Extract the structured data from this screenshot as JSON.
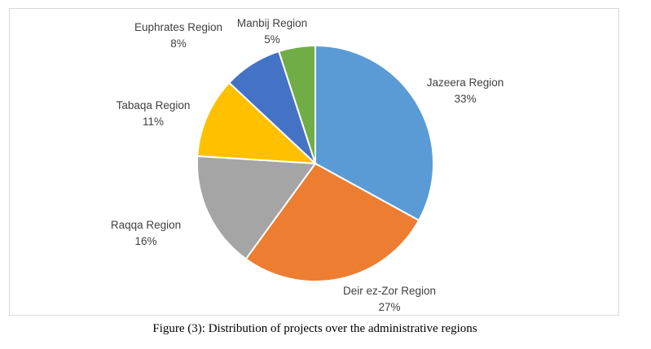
{
  "chart_data": {
    "type": "pie",
    "slices": [
      {
        "name": "Jazeera Region",
        "value": 33,
        "value_label": "33%",
        "color": "#5b9bd5"
      },
      {
        "name": "Deir ez-Zor Region",
        "value": 27,
        "value_label": "27%",
        "color": "#ed7d31"
      },
      {
        "name": "Raqqa Region",
        "value": 16,
        "value_label": "16%",
        "color": "#a5a5a5"
      },
      {
        "name": "Tabaqa Region",
        "value": 11,
        "value_label": "11%",
        "color": "#ffc000"
      },
      {
        "name": "Euphrates Region",
        "value": 8,
        "value_label": "8%",
        "color": "#4472c4"
      },
      {
        "name": "Manbij Region",
        "value": 5,
        "value_label": "5%",
        "color": "#70ad47"
      }
    ]
  },
  "caption": "Figure (3): Distribution of projects over the administrative regions"
}
